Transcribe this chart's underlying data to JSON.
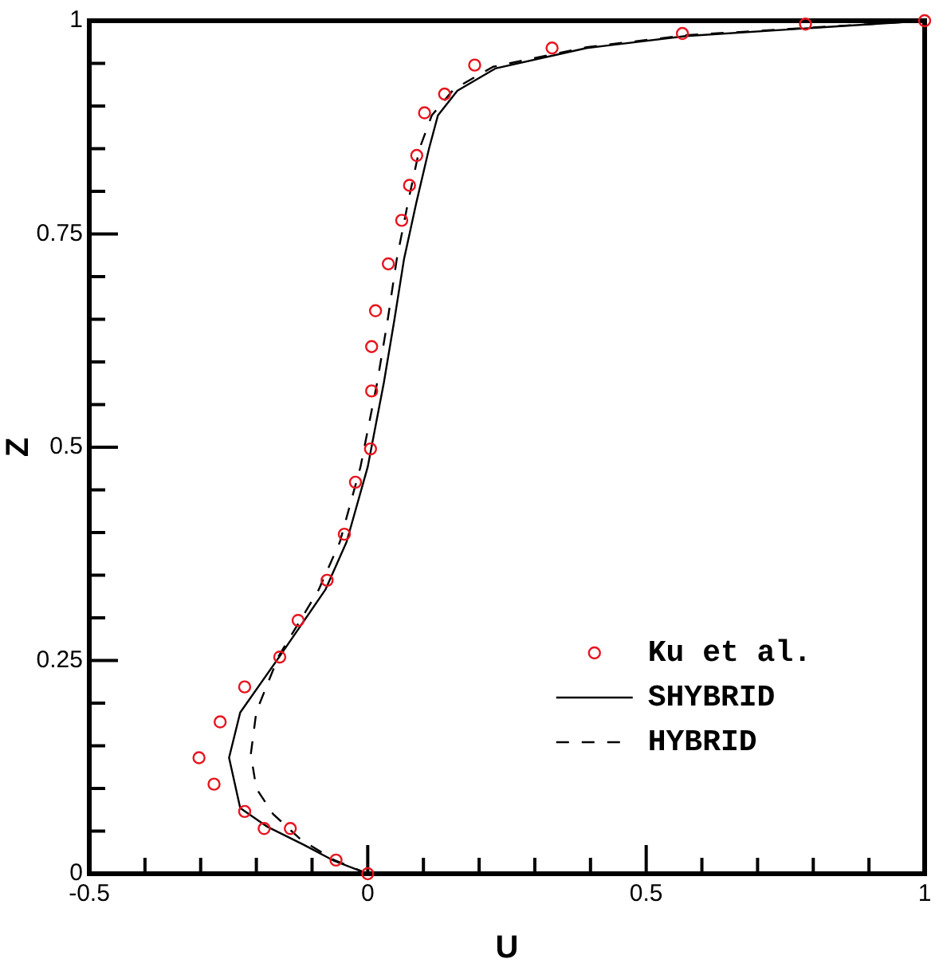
{
  "chart_data": {
    "type": "line",
    "xlabel": "U",
    "ylabel": "Z",
    "xlim": [
      -0.5,
      1
    ],
    "ylim": [
      0,
      1
    ],
    "xticks": [
      -0.5,
      {
        "value": -0.4,
        "label": null
      },
      {
        "value": -0.3,
        "label": null
      },
      {
        "value": -0.2,
        "label": null
      },
      {
        "value": -0.1,
        "label": null
      },
      0,
      {
        "value": 0.1,
        "label": null
      },
      {
        "value": 0.2,
        "label": null
      },
      {
        "value": 0.3,
        "label": null
      },
      {
        "value": 0.4,
        "label": null
      },
      0.5,
      {
        "value": 0.6,
        "label": null
      },
      {
        "value": 0.7,
        "label": null
      },
      {
        "value": 0.8,
        "label": null
      },
      {
        "value": 0.9,
        "label": null
      },
      1
    ],
    "yticks": [
      0,
      {
        "value": 0.05,
        "label": null
      },
      {
        "value": 0.1,
        "label": null
      },
      {
        "value": 0.15,
        "label": null
      },
      {
        "value": 0.2,
        "label": null
      },
      0.25,
      {
        "value": 0.3,
        "label": null
      },
      {
        "value": 0.35,
        "label": null
      },
      {
        "value": 0.4,
        "label": null
      },
      {
        "value": 0.45,
        "label": null
      },
      0.5,
      {
        "value": 0.55,
        "label": null
      },
      {
        "value": 0.6,
        "label": null
      },
      {
        "value": 0.65,
        "label": null
      },
      {
        "value": 0.7,
        "label": null
      },
      0.75,
      {
        "value": 0.8,
        "label": null
      },
      {
        "value": 0.85,
        "label": null
      },
      {
        "value": 0.9,
        "label": null
      },
      {
        "value": 0.95,
        "label": null
      },
      1
    ],
    "grid": false,
    "legend": "bottom right",
    "series": [
      {
        "name": "Ku et al.",
        "type": "scatter",
        "marker": "circle",
        "color": "#e8141e",
        "x": [
          1.0,
          0.786,
          0.565,
          0.331,
          0.192,
          0.138,
          0.102,
          0.088,
          0.075,
          0.061,
          0.037,
          0.014,
          0.007,
          0.007,
          0.005,
          -0.022,
          -0.042,
          -0.073,
          -0.125,
          -0.158,
          -0.221,
          -0.265,
          -0.303,
          -0.276,
          -0.221,
          -0.186,
          -0.139,
          -0.057,
          0.0
        ],
        "values": [
          1.0,
          0.996,
          0.985,
          0.968,
          0.948,
          0.914,
          0.892,
          0.842,
          0.807,
          0.766,
          0.715,
          0.66,
          0.618,
          0.566,
          0.498,
          0.459,
          0.398,
          0.344,
          0.297,
          0.254,
          0.219,
          0.178,
          0.136,
          0.105,
          0.073,
          0.053,
          0.053,
          0.016,
          0.0
        ]
      },
      {
        "name": "SHYBRID",
        "type": "line",
        "marker": "none",
        "line_style": "solid",
        "color": "#000000",
        "x": [
          0,
          -0.06,
          -0.115,
          -0.18,
          -0.229,
          -0.249,
          -0.229,
          -0.158,
          -0.076,
          -0.038,
          0,
          0.029,
          0.048,
          0.065,
          0.087,
          0.11,
          0.126,
          0.161,
          0.229,
          0.393,
          0.571,
          1
        ],
        "values": [
          0,
          0.015,
          0.034,
          0.055,
          0.077,
          0.136,
          0.189,
          0.255,
          0.333,
          0.389,
          0.477,
          0.576,
          0.65,
          0.72,
          0.786,
          0.85,
          0.889,
          0.918,
          0.944,
          0.968,
          0.982,
          1
        ]
      },
      {
        "name": "HYBRID",
        "type": "line",
        "marker": "none",
        "line_style": "dashed",
        "color": "#000000",
        "x": [
          0,
          -0.06,
          -0.12,
          -0.17,
          -0.2,
          -0.21,
          -0.2,
          -0.16,
          -0.088,
          -0.05,
          -0.013,
          0.017,
          0.036,
          0.052,
          0.072,
          0.093,
          0.115,
          0.155,
          0.225,
          0.393,
          0.571,
          1
        ],
        "values": [
          0,
          0.016,
          0.04,
          0.07,
          0.1,
          0.14,
          0.19,
          0.255,
          0.333,
          0.389,
          0.477,
          0.576,
          0.65,
          0.72,
          0.786,
          0.85,
          0.889,
          0.92,
          0.946,
          0.969,
          0.983,
          1
        ]
      }
    ]
  }
}
